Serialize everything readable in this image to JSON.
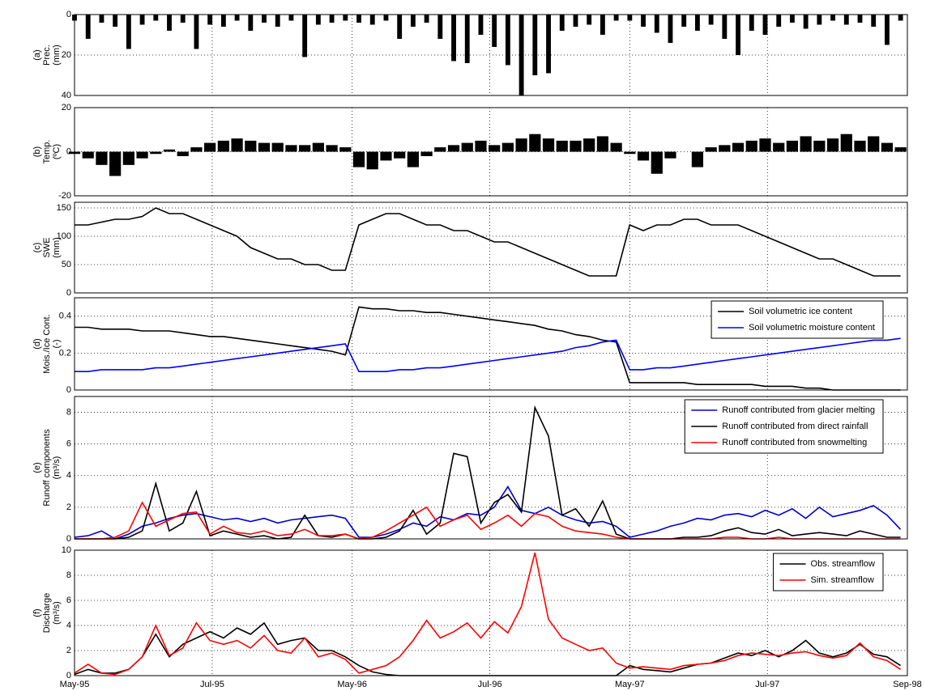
{
  "chart_data": [
    {
      "type": "bar",
      "ylabel": [
        "(a)",
        "Prec.",
        "(mm)"
      ],
      "y_inverted": true,
      "ylim": [
        0,
        40
      ],
      "yticks": [
        0,
        20,
        40
      ],
      "xlim": [
        0,
        369
      ],
      "grid": true,
      "x": [
        0,
        6,
        12,
        18,
        24,
        30,
        36,
        42,
        48,
        54,
        60,
        66,
        72,
        78,
        84,
        90,
        96,
        102,
        108,
        114,
        120,
        126,
        132,
        138,
        144,
        150,
        156,
        162,
        168,
        174,
        180,
        186,
        192,
        198,
        204,
        210,
        216,
        222,
        228,
        234,
        240,
        246,
        252,
        258,
        264,
        270,
        276,
        282,
        288,
        294,
        300,
        306,
        312,
        318,
        324,
        330,
        336,
        342,
        348,
        354,
        360,
        366
      ],
      "series": [
        {
          "color": "#000000",
          "values": [
            3,
            12,
            4,
            6,
            17,
            5,
            3,
            8,
            4,
            17,
            5,
            6,
            3,
            8,
            4,
            6,
            3,
            21,
            5,
            4,
            3,
            4,
            5,
            3,
            12,
            6,
            4,
            12,
            23,
            24,
            10,
            16,
            25,
            40,
            30,
            29,
            8,
            6,
            5,
            10,
            3,
            3,
            6,
            9,
            14,
            6,
            8,
            5,
            12,
            20,
            8,
            10,
            6,
            4,
            7,
            5,
            3,
            5,
            4,
            6,
            15,
            3
          ]
        }
      ]
    },
    {
      "type": "bar",
      "ylabel": [
        "(b)",
        "Temp.",
        "(ºC)"
      ],
      "ylim": [
        -20,
        20
      ],
      "yticks": [
        -20,
        0,
        20
      ],
      "xlim": [
        0,
        369
      ],
      "grid": true,
      "x": [
        0,
        6,
        12,
        18,
        24,
        30,
        36,
        42,
        48,
        54,
        60,
        66,
        72,
        78,
        84,
        90,
        96,
        102,
        108,
        114,
        120,
        126,
        132,
        138,
        144,
        150,
        156,
        162,
        168,
        174,
        180,
        186,
        192,
        198,
        204,
        210,
        216,
        222,
        228,
        234,
        240,
        246,
        252,
        258,
        264,
        270,
        276,
        282,
        288,
        294,
        300,
        306,
        312,
        318,
        324,
        330,
        336,
        342,
        348,
        354,
        360,
        366
      ],
      "series": [
        {
          "color": "#000000",
          "values": [
            -1,
            -3,
            -6,
            -11,
            -6,
            -3,
            -1,
            1,
            -2,
            2,
            4,
            5,
            6,
            5,
            4,
            4,
            3,
            3,
            4,
            3,
            2,
            -7,
            -8,
            -4,
            -3,
            -7,
            -2,
            2,
            3,
            4,
            5,
            3,
            4,
            6,
            8,
            6,
            5,
            5,
            6,
            7,
            4,
            -1,
            -4,
            -10,
            -3,
            0,
            -7,
            2,
            3,
            4,
            5,
            6,
            4,
            5,
            7,
            5,
            6,
            8,
            5,
            7,
            4,
            2
          ]
        }
      ]
    },
    {
      "type": "line",
      "ylabel": [
        "(c)",
        "SWE",
        "(mm)"
      ],
      "ylim": [
        0,
        160
      ],
      "yticks": [
        0,
        50,
        100,
        150
      ],
      "xlim": [
        0,
        369
      ],
      "grid": true,
      "x": [
        0,
        6,
        12,
        18,
        24,
        30,
        36,
        42,
        48,
        54,
        60,
        66,
        72,
        78,
        84,
        90,
        96,
        102,
        108,
        114,
        120,
        126,
        132,
        138,
        144,
        150,
        156,
        162,
        168,
        174,
        180,
        186,
        192,
        198,
        204,
        210,
        216,
        222,
        228,
        234,
        240,
        246,
        252,
        258,
        264,
        270,
        276,
        282,
        288,
        294,
        300,
        306,
        312,
        318,
        324,
        330,
        336,
        342,
        348,
        354,
        360,
        366
      ],
      "series": [
        {
          "color": "#000000",
          "values": [
            120,
            120,
            125,
            130,
            130,
            135,
            150,
            140,
            140,
            130,
            120,
            110,
            100,
            80,
            70,
            60,
            60,
            50,
            50,
            40,
            40,
            120,
            130,
            140,
            140,
            130,
            120,
            120,
            110,
            110,
            100,
            90,
            90,
            80,
            70,
            60,
            50,
            40,
            30,
            30,
            30,
            120,
            110,
            120,
            120,
            130,
            130,
            120,
            120,
            120,
            110,
            100,
            90,
            80,
            70,
            60,
            60,
            50,
            40,
            30,
            30,
            30
          ]
        }
      ]
    },
    {
      "type": "line",
      "ylabel": [
        "(d)",
        "Mois./Ice Cont.",
        "(-)"
      ],
      "ylim": [
        0,
        0.5
      ],
      "yticks": [
        0,
        0.2,
        0.4
      ],
      "xlim": [
        0,
        369
      ],
      "grid": true,
      "legend": "upper right",
      "x": [
        0,
        6,
        12,
        18,
        24,
        30,
        36,
        42,
        48,
        54,
        60,
        66,
        72,
        78,
        84,
        90,
        96,
        102,
        108,
        114,
        120,
        126,
        132,
        138,
        144,
        150,
        156,
        162,
        168,
        174,
        180,
        186,
        192,
        198,
        204,
        210,
        216,
        222,
        228,
        234,
        240,
        246,
        252,
        258,
        264,
        270,
        276,
        282,
        288,
        294,
        300,
        306,
        312,
        318,
        324,
        330,
        336,
        342,
        348,
        354,
        360,
        366
      ],
      "series": [
        {
          "name": "Soil volumetric ice content",
          "color": "#000000",
          "values": [
            0.34,
            0.34,
            0.33,
            0.33,
            0.33,
            0.32,
            0.32,
            0.32,
            0.31,
            0.3,
            0.29,
            0.29,
            0.28,
            0.27,
            0.26,
            0.25,
            0.24,
            0.23,
            0.22,
            0.21,
            0.19,
            0.45,
            0.44,
            0.44,
            0.43,
            0.43,
            0.42,
            0.42,
            0.41,
            0.4,
            0.39,
            0.38,
            0.37,
            0.36,
            0.35,
            0.33,
            0.32,
            0.3,
            0.29,
            0.27,
            0.26,
            0.04,
            0.04,
            0.04,
            0.04,
            0.04,
            0.03,
            0.03,
            0.03,
            0.03,
            0.03,
            0.02,
            0.02,
            0.02,
            0.01,
            0.01,
            0,
            0,
            0,
            0,
            0,
            0
          ]
        },
        {
          "name": "Soil volumetric moisture content",
          "color": "#0000ff",
          "values": [
            0.1,
            0.1,
            0.11,
            0.11,
            0.11,
            0.11,
            0.12,
            0.12,
            0.13,
            0.14,
            0.15,
            0.16,
            0.17,
            0.18,
            0.19,
            0.2,
            0.21,
            0.22,
            0.23,
            0.24,
            0.25,
            0.1,
            0.1,
            0.1,
            0.11,
            0.11,
            0.12,
            0.12,
            0.13,
            0.14,
            0.15,
            0.16,
            0.17,
            0.18,
            0.19,
            0.2,
            0.21,
            0.23,
            0.24,
            0.26,
            0.27,
            0.11,
            0.11,
            0.12,
            0.12,
            0.13,
            0.14,
            0.15,
            0.16,
            0.17,
            0.18,
            0.19,
            0.2,
            0.21,
            0.22,
            0.23,
            0.24,
            0.25,
            0.26,
            0.27,
            0.27,
            0.28
          ]
        }
      ]
    },
    {
      "type": "line",
      "ylabel": [
        "(e)",
        "Runoff components",
        "(m³/s)"
      ],
      "ylim": [
        0,
        9
      ],
      "yticks": [
        0,
        2,
        4,
        6,
        8
      ],
      "xlim": [
        0,
        369
      ],
      "grid": true,
      "legend": "upper right",
      "x": [
        0,
        6,
        12,
        18,
        24,
        30,
        36,
        42,
        48,
        54,
        60,
        66,
        72,
        78,
        84,
        90,
        96,
        102,
        108,
        114,
        120,
        126,
        132,
        138,
        144,
        150,
        156,
        162,
        168,
        174,
        180,
        186,
        192,
        198,
        204,
        210,
        216,
        222,
        228,
        234,
        240,
        246,
        252,
        258,
        264,
        270,
        276,
        282,
        288,
        294,
        300,
        306,
        312,
        318,
        324,
        330,
        336,
        342,
        348,
        354,
        360,
        366
      ],
      "series": [
        {
          "name": "Runoff contributed from glacier melting",
          "color": "#0000cc",
          "values": [
            0.1,
            0.2,
            0.5,
            0,
            0.3,
            0.8,
            1.0,
            1.3,
            1.5,
            1.6,
            1.4,
            1.2,
            1.3,
            1.1,
            1.3,
            1.0,
            1.2,
            1.3,
            1.4,
            1.5,
            1.3,
            0.1,
            0.1,
            0.3,
            0.6,
            1.0,
            0.8,
            1.4,
            1.2,
            1.6,
            1.5,
            2.0,
            3.3,
            1.8,
            1.6,
            2.0,
            1.5,
            1.2,
            1.0,
            1.1,
            0.8,
            0.1,
            0.3,
            0.5,
            0.8,
            1.0,
            1.3,
            1.2,
            1.5,
            1.6,
            1.4,
            1.8,
            1.5,
            1.9,
            1.3,
            2.0,
            1.4,
            1.6,
            1.8,
            2.1,
            1.5,
            0.6
          ]
        },
        {
          "name": "Runoff contributed from direct rainfall",
          "color": "#000000",
          "values": [
            0,
            0,
            0,
            0,
            0.1,
            0.5,
            3.5,
            0.5,
            1.0,
            3.0,
            0.2,
            0.5,
            0.3,
            0.1,
            0.2,
            0,
            0.1,
            1.5,
            0.2,
            0.1,
            0.3,
            0,
            0,
            0.1,
            0.5,
            1.8,
            0.3,
            1.0,
            5.4,
            5.2,
            1.0,
            2.3,
            2.8,
            1.7,
            8.3,
            6.5,
            1.5,
            1.9,
            0.8,
            2.4,
            0.3,
            0,
            0,
            0,
            0,
            0.1,
            0.1,
            0.2,
            0.5,
            0.7,
            0.4,
            0.3,
            0.6,
            0.2,
            0.3,
            0.4,
            0.3,
            0.2,
            0.5,
            0.3,
            0.1,
            0.1
          ]
        },
        {
          "name": "Runoff contributed from snowmelting",
          "color": "#ff0000",
          "values": [
            0,
            0,
            0,
            0.1,
            0.5,
            2.3,
            0.8,
            1.2,
            1.6,
            1.7,
            0.3,
            0.8,
            0.4,
            0.3,
            0.5,
            0.2,
            0.3,
            0.6,
            0.2,
            0.2,
            0.3,
            0,
            0.1,
            0.5,
            1.0,
            1.5,
            2.0,
            0.8,
            1.2,
            1.5,
            0.6,
            1.0,
            1.5,
            0.8,
            1.6,
            1.4,
            0.8,
            0.5,
            0.4,
            0.3,
            0.1,
            0,
            0,
            0,
            0,
            0,
            0,
            0,
            0.1,
            0.1,
            0,
            0,
            0.1,
            0,
            0,
            0,
            0,
            0,
            0,
            0,
            0,
            0
          ]
        }
      ]
    },
    {
      "type": "line",
      "ylabel": [
        "(f)",
        "Discharge",
        "(m³/s)"
      ],
      "ylim": [
        0,
        10
      ],
      "yticks": [
        0,
        2,
        4,
        6,
        8,
        10
      ],
      "xlim": [
        0,
        369
      ],
      "grid": true,
      "legend": "upper right",
      "xticks": [
        {
          "value": 0,
          "label": "May-95"
        },
        {
          "value": 61,
          "label": "Jul-95"
        },
        {
          "value": 123,
          "label": "May-96"
        },
        {
          "value": 184,
          "label": "Jul-96"
        },
        {
          "value": 246,
          "label": "May-97"
        },
        {
          "value": 307,
          "label": "Jul-97"
        },
        {
          "value": 369,
          "label": "Sep-98"
        }
      ],
      "x": [
        0,
        6,
        12,
        18,
        24,
        30,
        36,
        42,
        48,
        54,
        60,
        66,
        72,
        78,
        84,
        90,
        96,
        102,
        108,
        114,
        120,
        126,
        132,
        138,
        144,
        150,
        156,
        162,
        168,
        174,
        180,
        186,
        192,
        198,
        204,
        210,
        216,
        222,
        228,
        234,
        240,
        246,
        252,
        258,
        264,
        270,
        276,
        282,
        288,
        294,
        300,
        306,
        312,
        318,
        324,
        330,
        336,
        342,
        348,
        354,
        360,
        366
      ],
      "series": [
        {
          "name": "Obs. streamflow",
          "color": "#000000",
          "values": [
            0.1,
            0.5,
            0.2,
            0.2,
            0.5,
            1.5,
            3.3,
            1.5,
            2.5,
            3.0,
            3.5,
            3.0,
            3.8,
            3.3,
            4.2,
            2.5,
            2.8,
            3.0,
            2.0,
            2.0,
            1.5,
            0.8,
            0.3,
            0.1,
            0,
            0,
            0,
            0,
            0,
            0,
            0,
            0,
            0,
            0,
            0,
            0,
            0,
            0,
            0,
            0,
            0,
            0.8,
            0.5,
            0.4,
            0.3,
            0.6,
            0.9,
            1.0,
            1.4,
            1.8,
            1.6,
            2.0,
            1.5,
            2.0,
            2.8,
            1.8,
            1.5,
            1.8,
            2.5,
            1.7,
            1.5,
            0.8
          ]
        },
        {
          "name": "Sim. streamflow",
          "color": "#ff0000",
          "values": [
            0.2,
            0.9,
            0.2,
            0.1,
            0.5,
            1.5,
            4.0,
            1.6,
            2.2,
            4.2,
            2.8,
            2.5,
            2.8,
            2.2,
            3.2,
            2.0,
            1.8,
            3.0,
            1.5,
            1.8,
            1.3,
            0.2,
            0.5,
            0.8,
            1.5,
            2.8,
            4.4,
            3.0,
            3.5,
            4.2,
            3.0,
            4.3,
            3.4,
            5.5,
            9.8,
            4.5,
            3.0,
            2.5,
            2.0,
            2.2,
            1.0,
            0.6,
            0.7,
            0.6,
            0.5,
            0.8,
            0.9,
            1.0,
            1.2,
            1.6,
            1.8,
            1.7,
            1.6,
            1.8,
            1.9,
            1.6,
            1.4,
            1.6,
            2.6,
            1.5,
            1.2,
            0.5
          ]
        }
      ]
    }
  ]
}
